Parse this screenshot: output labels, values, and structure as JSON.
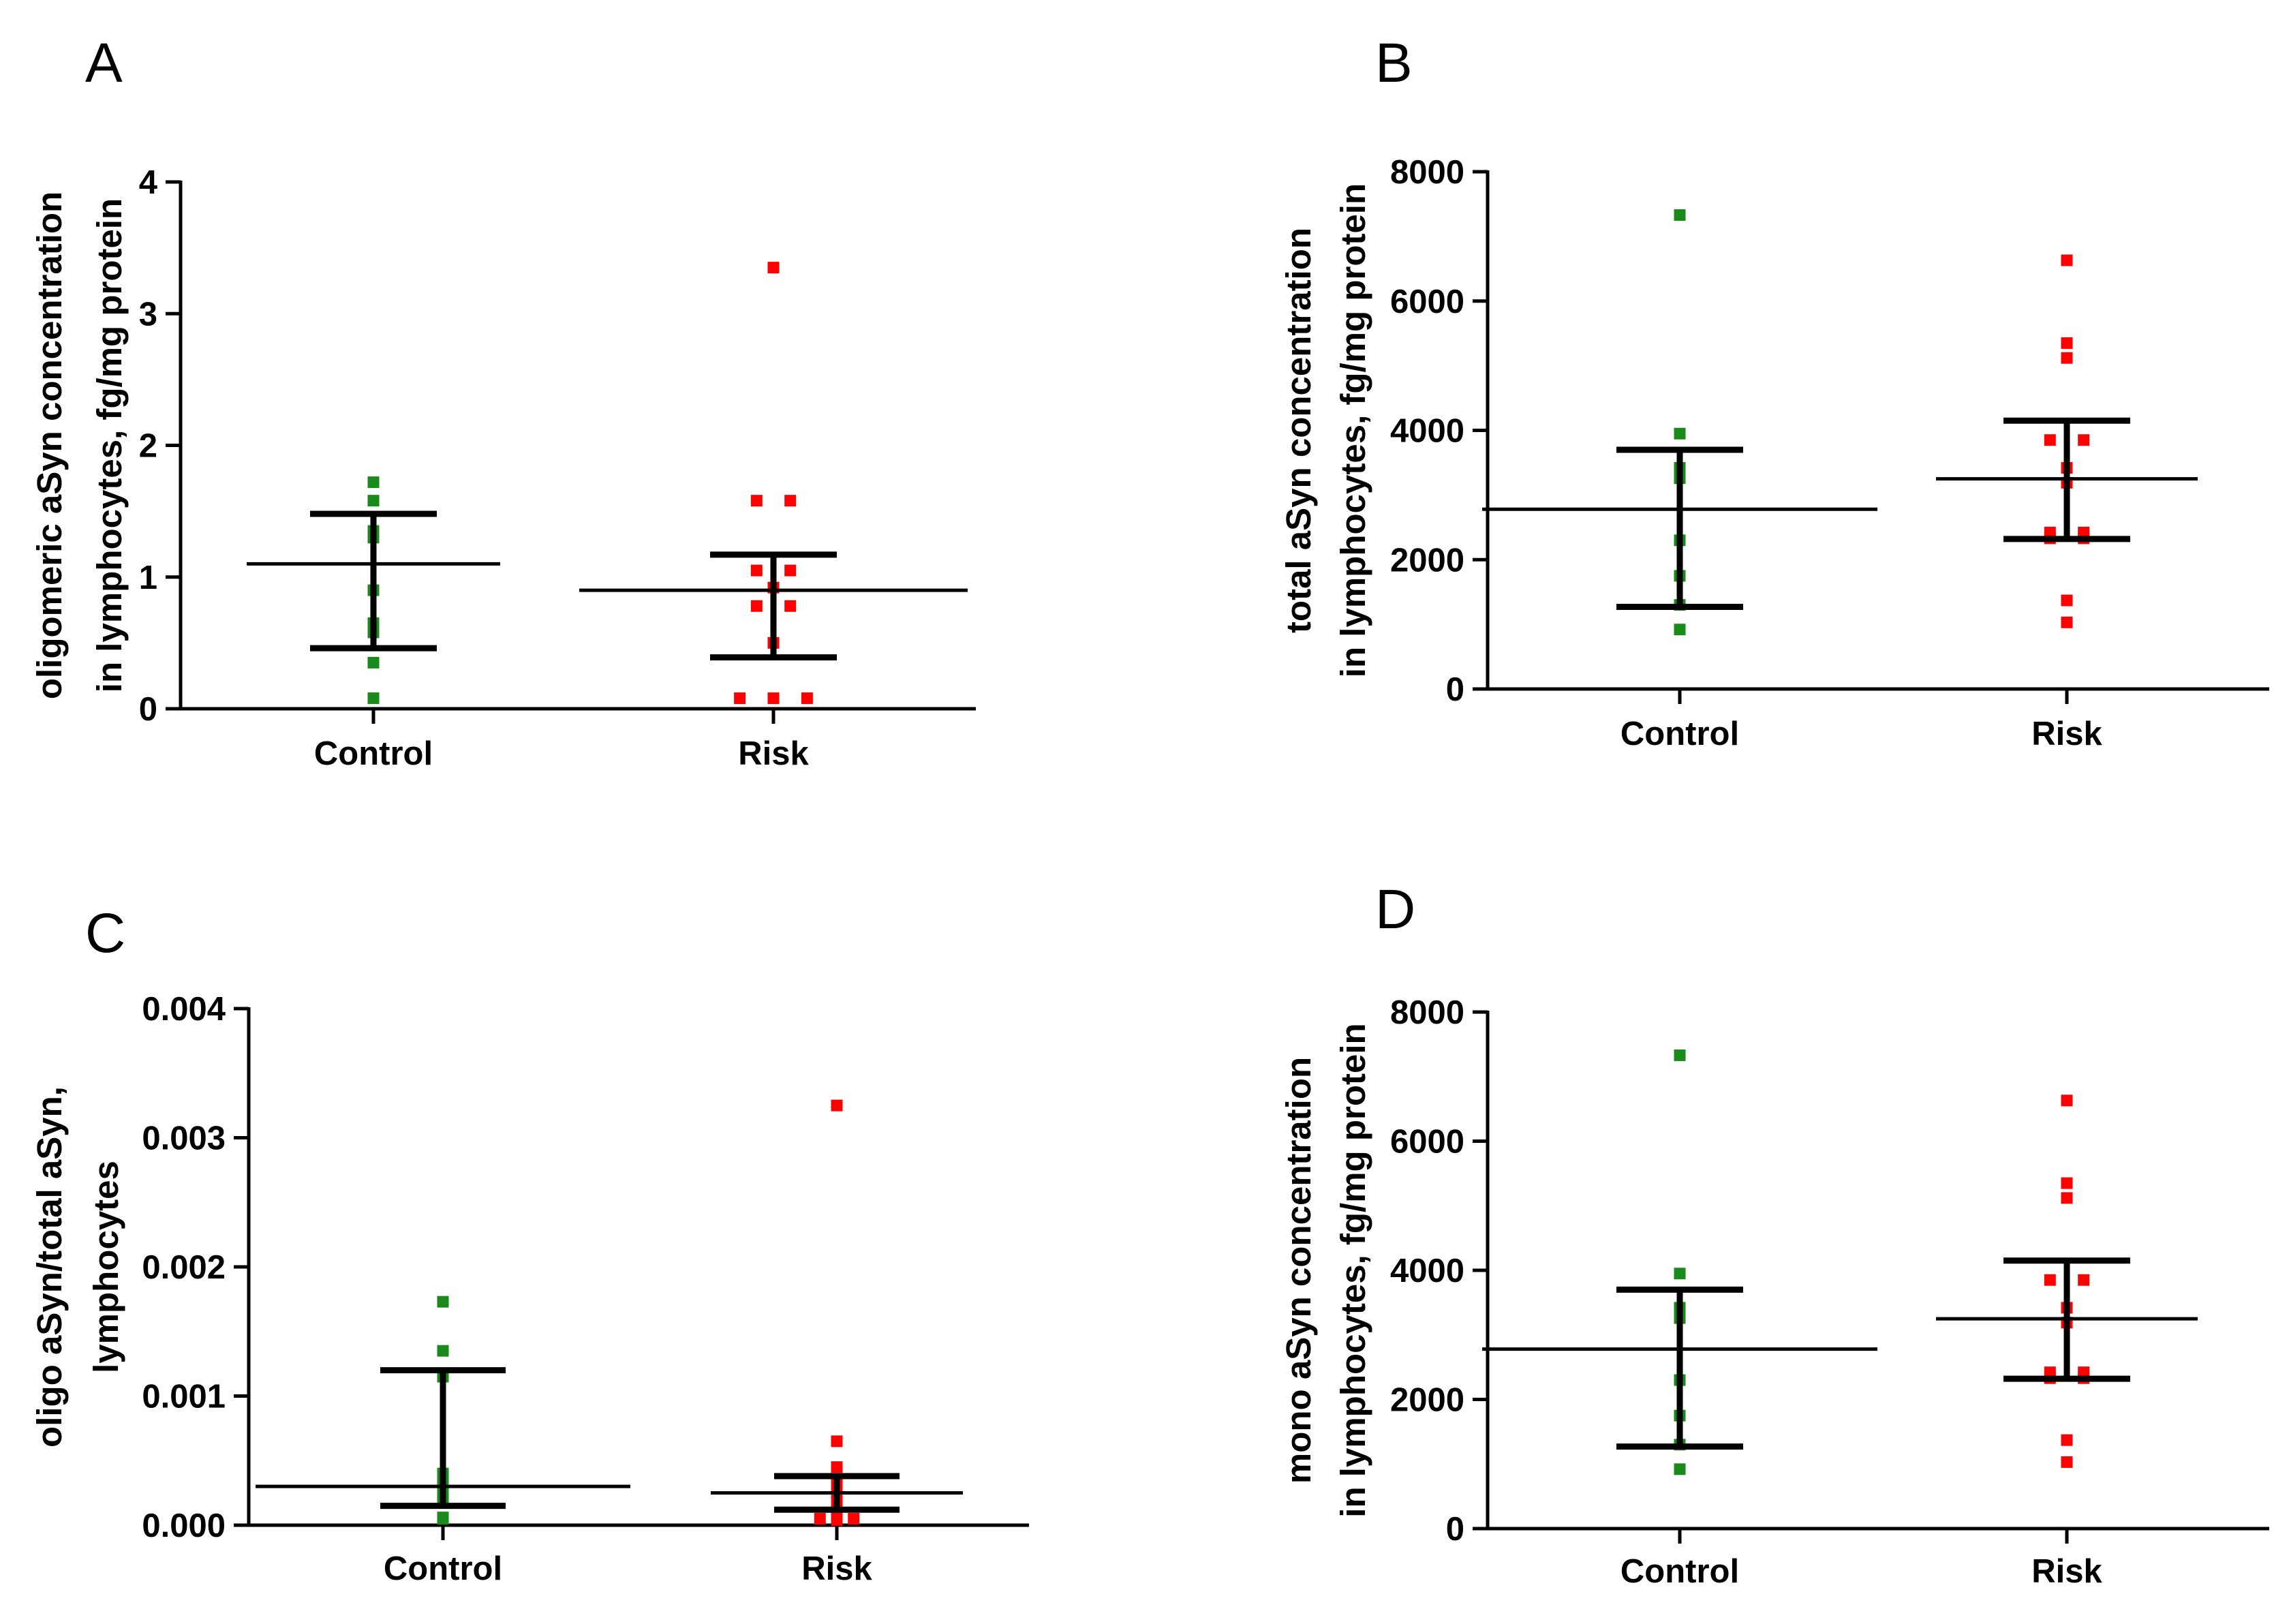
{
  "chart_data": [
    {
      "type": "scatter",
      "panel": "A",
      "categories": [
        "Control",
        "Risk"
      ],
      "ylabel_lines": [
        "oligomeric aSyn concentration",
        "in lymphocytes, fg/mg protein"
      ],
      "ylim": [
        0,
        4
      ],
      "yticks": [
        0,
        1,
        2,
        3,
        4
      ],
      "ytick_labels": [
        "0",
        "1",
        "2",
        "3",
        "4"
      ],
      "colors": {
        "Control": "#1a8a1a",
        "Risk": "#ff0000"
      },
      "points": {
        "Control": [
          1.72,
          1.58,
          1.35,
          1.3,
          0.9,
          0.65,
          0.58,
          0.35,
          0.08
        ],
        "Risk": [
          3.35,
          1.58,
          1.58,
          1.05,
          1.05,
          0.92,
          0.78,
          0.78,
          0.5,
          0.08,
          0.08,
          0.08
        ]
      },
      "summary": {
        "Control": {
          "median": 1.1,
          "lower": 0.46,
          "upper": 1.48
        },
        "Risk": {
          "median": 0.9,
          "lower": 0.39,
          "upper": 1.17
        }
      }
    },
    {
      "type": "scatter",
      "panel": "B",
      "categories": [
        "Control",
        "Risk"
      ],
      "ylabel_lines": [
        "total aSyn concentration",
        "in lymphocytes, fg/mg protein"
      ],
      "ylim": [
        0,
        8000
      ],
      "yticks": [
        0,
        2000,
        4000,
        6000,
        8000
      ],
      "ytick_labels": [
        "0",
        "2000",
        "4000",
        "6000",
        "8000"
      ],
      "colors": {
        "Control": "#1a8a1a",
        "Risk": "#ff0000"
      },
      "points": {
        "Control": [
          7330,
          3950,
          3420,
          3260,
          2300,
          1750,
          1300,
          920
        ],
        "Risk": [
          6630,
          5350,
          5120,
          3850,
          3850,
          3420,
          3190,
          2420,
          2420,
          2330,
          2330,
          1370,
          1030
        ]
      },
      "summary": {
        "Control": {
          "median": 2780,
          "lower": 1270,
          "upper": 3700
        },
        "Risk": {
          "median": 3250,
          "lower": 2320,
          "upper": 4150
        }
      }
    },
    {
      "type": "scatter",
      "panel": "C",
      "categories": [
        "Control",
        "Risk"
      ],
      "ylabel_lines": [
        "oligo aSyn/total aSyn,",
        "lymphocytes"
      ],
      "ylim": [
        0,
        0.004
      ],
      "yticks": [
        0,
        0.001,
        0.002,
        0.003,
        0.004
      ],
      "ytick_labels": [
        "0.000",
        "0.001",
        "0.002",
        "0.003",
        "0.004"
      ],
      "colors": {
        "Control": "#1a8a1a",
        "Risk": "#ff0000"
      },
      "points": {
        "Control": [
          0.00173,
          0.00135,
          0.00115,
          0.0004,
          0.00033,
          0.00025,
          0.00018,
          6e-05,
          5e-05
        ],
        "Risk": [
          0.00325,
          0.00065,
          0.00045,
          0.00033,
          0.00028,
          0.00025,
          0.00022,
          0.00015,
          0.00012,
          5e-05,
          5e-05,
          4e-05
        ]
      },
      "summary": {
        "Control": {
          "median": 0.0003,
          "lower": 0.00015,
          "upper": 0.0012
        },
        "Risk": {
          "median": 0.00025,
          "lower": 0.00012,
          "upper": 0.00038
        }
      }
    },
    {
      "type": "scatter",
      "panel": "D",
      "categories": [
        "Control",
        "Risk"
      ],
      "ylabel_lines": [
        "mono aSyn concentration",
        "in lymphocytes, fg/mg protein"
      ],
      "ylim": [
        0,
        8000
      ],
      "yticks": [
        0,
        2000,
        4000,
        6000,
        8000
      ],
      "ytick_labels": [
        "0",
        "2000",
        "4000",
        "6000",
        "8000"
      ],
      "colors": {
        "Control": "#1a8a1a",
        "Risk": "#ff0000"
      },
      "points": {
        "Control": [
          7330,
          3950,
          3420,
          3260,
          2300,
          1750,
          1300,
          920
        ],
        "Risk": [
          6630,
          5350,
          5120,
          3850,
          3850,
          3420,
          3190,
          2420,
          2420,
          2330,
          2330,
          1370,
          1030
        ]
      },
      "summary": {
        "Control": {
          "median": 2780,
          "lower": 1270,
          "upper": 3700
        },
        "Risk": {
          "median": 3250,
          "lower": 2320,
          "upper": 4150
        }
      }
    }
  ]
}
